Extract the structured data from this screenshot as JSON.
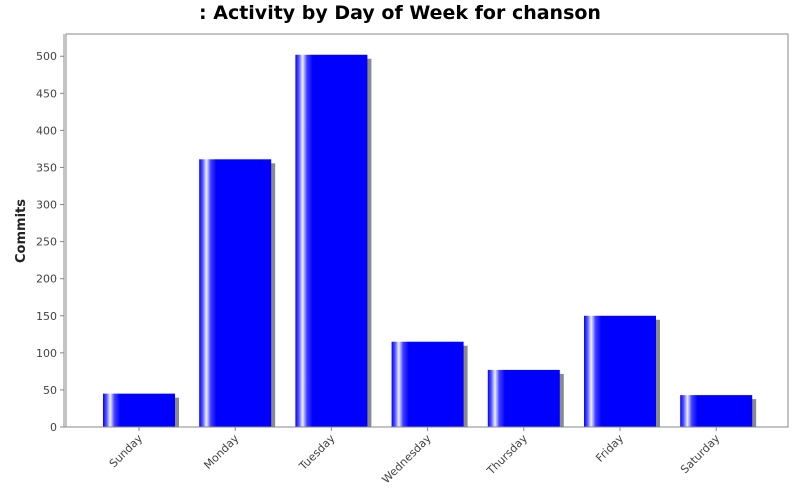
{
  "chart_data": {
    "type": "bar",
    "title": ": Activity by Day of Week for chanson",
    "xlabel": "",
    "ylabel": "Commits",
    "categories": [
      "Sunday",
      "Monday",
      "Tuesday",
      "Wednesday",
      "Thursday",
      "Friday",
      "Saturday"
    ],
    "values": [
      45,
      361,
      502,
      115,
      77,
      150,
      43
    ],
    "ylim": [
      0,
      530
    ],
    "yticks": [
      0,
      50,
      100,
      150,
      200,
      250,
      300,
      350,
      400,
      450,
      500
    ],
    "grid": false,
    "legend": "none",
    "bar_color": "#0000ff",
    "shadow_color": "#8a8a8a"
  }
}
